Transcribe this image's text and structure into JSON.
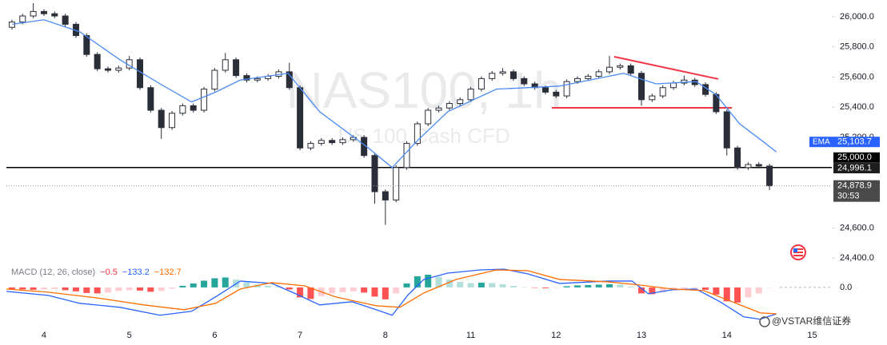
{
  "chart_data": {
    "type": "candlestick",
    "title": "NAS100, 1h",
    "subtitle": "US 100 Cash CFD",
    "brand": "@VSTAR维信证券",
    "up_color": "#ffffff",
    "down_color": "#2a2e39",
    "wick_color": "#2a2e39",
    "x": [
      -0.375,
      -0.25,
      -0.125,
      0,
      0.125,
      0.25,
      0.375,
      0.5,
      0.625,
      0.75,
      0.875,
      1,
      1.125,
      1.25,
      1.375,
      1.5,
      1.625,
      1.75,
      1.875,
      2,
      2.125,
      2.25,
      2.375,
      2.5,
      2.625,
      2.75,
      2.875,
      3,
      3.125,
      3.25,
      3.375,
      3.5,
      3.625,
      3.75,
      3.875,
      4,
      4.125,
      4.25,
      4.375,
      4.5,
      4.625,
      4.75,
      4.875,
      5,
      5.125,
      5.25,
      5.375,
      5.5,
      5.625,
      5.75,
      5.875,
      6,
      6.125,
      6.25,
      6.375,
      6.5,
      6.625,
      6.75,
      6.875,
      7,
      7.125,
      7.25,
      7.375,
      7.5,
      7.625,
      7.75,
      7.875,
      8,
      8.125,
      8.25,
      8.375,
      8.5
    ],
    "open": [
      25930,
      25965,
      26005,
      26035,
      26020,
      26005,
      25950,
      25875,
      25750,
      25655,
      25645,
      25660,
      25715,
      25530,
      25380,
      25265,
      25360,
      25410,
      25380,
      25520,
      25645,
      25715,
      25610,
      25580,
      25590,
      25605,
      25635,
      25530,
      25130,
      25160,
      25180,
      25165,
      25185,
      25200,
      25080,
      24840,
      24785,
      25000,
      25160,
      25290,
      25380,
      25395,
      25425,
      25450,
      25520,
      25590,
      25625,
      25635,
      25590,
      25555,
      25530,
      25500,
      25475,
      25570,
      25590,
      25605,
      25635,
      25665,
      25675,
      25625,
      25450,
      25475,
      25530,
      25560,
      25580,
      25550,
      25485,
      25370,
      25130,
      25000,
      25020,
      25010
    ],
    "high": [
      25980,
      26020,
      26090,
      26050,
      26035,
      26020,
      25965,
      25890,
      25765,
      25670,
      25675,
      25740,
      25730,
      25545,
      25395,
      25375,
      25425,
      25425,
      25535,
      25660,
      25760,
      25730,
      25625,
      25605,
      25620,
      25650,
      25695,
      25545,
      25175,
      25195,
      25195,
      25200,
      25215,
      25215,
      25095,
      24855,
      25015,
      25175,
      25305,
      25395,
      25410,
      25440,
      25465,
      25535,
      25605,
      25640,
      25660,
      25650,
      25605,
      25570,
      25545,
      25515,
      25585,
      25605,
      25620,
      25650,
      25740,
      25690,
      25690,
      25640,
      25490,
      25545,
      25575,
      25610,
      25595,
      25565,
      25500,
      25385,
      25145,
      25035,
      25035,
      25025
    ],
    "low": [
      25915,
      25950,
      25990,
      26005,
      25990,
      25935,
      25860,
      25735,
      25640,
      25630,
      25630,
      25645,
      25515,
      25365,
      25190,
      25250,
      25345,
      25365,
      25365,
      25505,
      25630,
      25595,
      25565,
      25565,
      25575,
      25590,
      25515,
      25115,
      25115,
      25145,
      25150,
      25150,
      25170,
      25065,
      24760,
      24620,
      24770,
      24985,
      25145,
      25275,
      25365,
      25380,
      25410,
      25435,
      25505,
      25575,
      25610,
      25575,
      25540,
      25515,
      25485,
      25460,
      25460,
      25555,
      25575,
      25590,
      25620,
      25650,
      25610,
      25410,
      25435,
      25460,
      25515,
      25545,
      25535,
      25470,
      25355,
      25080,
      24985,
      24985,
      24995,
      24850
    ],
    "close": [
      25965,
      26005,
      26035,
      26020,
      26005,
      25950,
      25875,
      25750,
      25655,
      25645,
      25660,
      25715,
      25530,
      25380,
      25265,
      25360,
      25410,
      25380,
      25520,
      25645,
      25715,
      25610,
      25580,
      25590,
      25605,
      25635,
      25530,
      25130,
      25160,
      25180,
      25165,
      25185,
      25200,
      25080,
      24840,
      24785,
      25000,
      25160,
      25290,
      25380,
      25395,
      25425,
      25450,
      25520,
      25590,
      25625,
      25635,
      25590,
      25555,
      25530,
      25500,
      25475,
      25570,
      25590,
      25605,
      25635,
      25665,
      25675,
      25625,
      25450,
      25475,
      25530,
      25560,
      25580,
      25550,
      25485,
      25370,
      25130,
      25000,
      25020,
      25010,
      24878.9
    ],
    "last_price_label": "24,878.9",
    "countdown": "30:53",
    "xlim": [
      -0.44,
      9.23
    ],
    "xticks": [
      {
        "value": 0,
        "label": "4"
      },
      {
        "value": 1,
        "label": "5"
      },
      {
        "value": 2,
        "label": "6"
      },
      {
        "value": 3,
        "label": "7"
      },
      {
        "value": 4,
        "label": "8"
      },
      {
        "value": 5,
        "label": "11"
      },
      {
        "value": 6,
        "label": "12"
      },
      {
        "value": 7,
        "label": "13"
      },
      {
        "value": 8,
        "label": "14"
      },
      {
        "value": 9,
        "label": "15"
      }
    ],
    "ylim": [
      24300,
      26111
    ],
    "yticks": [
      {
        "value": 26000,
        "label": "26,000.0"
      },
      {
        "value": 25800,
        "label": "25,800.0"
      },
      {
        "value": 25600,
        "label": "25,600.0"
      },
      {
        "value": 25400,
        "label": "25,400.0"
      },
      {
        "value": 25200,
        "label": "25,200.0"
      },
      {
        "value": 24600,
        "label": "24,600.0"
      },
      {
        "value": 24400,
        "label": "24,400.0"
      }
    ],
    "ema": {
      "name": "EMA",
      "color": "#4a8af4",
      "x": [
        -0.37,
        0,
        0.42,
        0.89,
        1.36,
        1.73,
        2.01,
        2.3,
        2.86,
        3.23,
        3.8,
        4.08,
        4.36,
        4.73,
        5.3,
        6.04,
        6.79,
        7.17,
        7.64,
        7.87,
        8.15,
        8.43,
        8.58
      ],
      "values": [
        25950,
        25980,
        25900,
        25715,
        25555,
        25435,
        25500,
        25580,
        25625,
        25370,
        25130,
        25000,
        25170,
        25370,
        25520,
        25540,
        25625,
        25555,
        25570,
        25485,
        25290,
        25170,
        25103.7
      ],
      "last_label": "25,103.7"
    },
    "hlines": [
      {
        "value": 25000,
        "label": "25,000.0",
        "color": "#000000"
      }
    ],
    "price_labels": [
      {
        "value": 24996.1,
        "label": "24,996.1"
      }
    ],
    "trendlines": [
      {
        "x": [
          5.95,
          8.06
        ],
        "values": [
          25396,
          25396
        ],
        "color": "#f23645"
      },
      {
        "x": [
          6.68,
          7.9
        ],
        "values": [
          25735,
          25587
        ],
        "color": "#f23645"
      }
    ],
    "macd": {
      "type": "macd",
      "title": "MACD (12, 26, close)",
      "ylim": [
        -165,
        120
      ],
      "yticks": [
        {
          "value": 0,
          "label": "0.0"
        }
      ],
      "histogram": {
        "colors": [
          "#26a69a",
          "#b2dfdb",
          "#ff5252",
          "#ffcdd2"
        ],
        "label_color": "#f23645",
        "values": [
          -8,
          -10,
          -12,
          -10,
          -8,
          -14,
          -20,
          -28,
          -30,
          -26,
          -18,
          -14,
          -16,
          -22,
          -18,
          -6,
          8,
          20,
          34,
          46,
          50,
          40,
          26,
          14,
          8,
          4,
          -10,
          -50,
          -58,
          -44,
          -30,
          -24,
          -20,
          -26,
          -46,
          -60,
          -30,
          20,
          56,
          64,
          54,
          40,
          28,
          22,
          24,
          22,
          16,
          8,
          2,
          -2,
          -4,
          -2,
          6,
          10,
          12,
          14,
          16,
          14,
          4,
          -30,
          -34,
          -24,
          -14,
          -8,
          -4,
          -12,
          -36,
          -70,
          -76,
          -50,
          -30,
          -0.5
        ],
        "last_label": "−0.5"
      },
      "series": [
        {
          "color": "#2962ff",
          "x": [
            -0.44,
            0.05,
            0.42,
            0.89,
            1.36,
            1.73,
            2.01,
            2.3,
            2.67,
            2.95,
            3.23,
            3.61,
            3.89,
            4.08,
            4.26,
            4.45,
            4.73,
            5.11,
            5.39,
            5.67,
            6.04,
            6.61,
            6.89,
            7.08,
            7.36,
            7.64,
            7.92,
            8.2,
            8.39,
            8.58
          ],
          "values": [
            -20,
            -40,
            -80,
            -100,
            -140,
            -120,
            -48,
            32,
            20,
            -32,
            -88,
            -72,
            -112,
            -140,
            -40,
            40,
            72,
            88,
            92,
            68,
            20,
            32,
            32,
            -32,
            -12,
            -8,
            -72,
            -148,
            -160,
            -133.2
          ],
          "last_label": "−133.2"
        },
        {
          "color": "#ff6d00",
          "x": [
            -0.44,
            0.05,
            0.61,
            1.17,
            1.64,
            2.01,
            2.3,
            2.67,
            3.05,
            3.42,
            3.89,
            4.17,
            4.45,
            4.83,
            5.3,
            5.67,
            6.04,
            6.61,
            6.98,
            7.36,
            7.73,
            8.11,
            8.39,
            8.58
          ],
          "values": [
            -8,
            -24,
            -52,
            -88,
            -112,
            -80,
            -8,
            24,
            8,
            -48,
            -92,
            -100,
            -28,
            40,
            88,
            84,
            40,
            28,
            12,
            -8,
            -16,
            -80,
            -128,
            -132.7
          ],
          "last_label": "−132.7"
        }
      ]
    }
  }
}
